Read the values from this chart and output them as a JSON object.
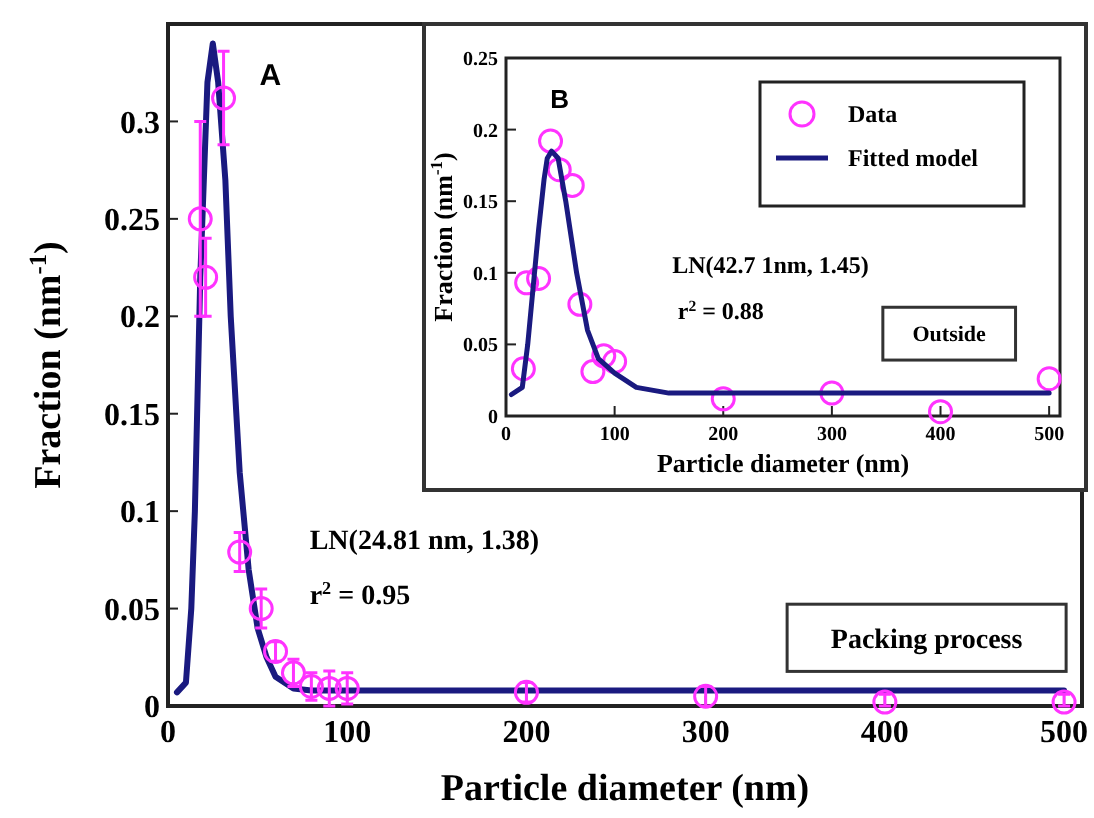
{
  "chart_data": [
    {
      "type": "scatter",
      "xlabel": "Particle diameter (nm)",
      "ylabel": "Fraction (nm$^{-1}$)",
      "xlim": [
        0,
        510
      ],
      "ylim": [
        0,
        0.35
      ],
      "xticks": [
        0,
        100,
        200,
        300,
        400,
        500
      ],
      "yticks": [
        0,
        0.05,
        0.1,
        0.15,
        0.2,
        0.25,
        0.3
      ],
      "legend": false,
      "annotations": [
        "A",
        "LN(24.81 nm, 1.38)",
        "r$^{2}$ = 0.95",
        "Packing process"
      ],
      "series": [
        {
          "type": "line",
          "color": "#1a1a80",
          "marker": "none",
          "line_style": "solid",
          "x": [
            5,
            10,
            13,
            15,
            18,
            22,
            25,
            28,
            32,
            35,
            40,
            45,
            50,
            55,
            60,
            70,
            80,
            100,
            200,
            300,
            400,
            500
          ],
          "values": [
            0.007,
            0.012,
            0.05,
            0.1,
            0.22,
            0.32,
            0.34,
            0.32,
            0.27,
            0.2,
            0.12,
            0.07,
            0.04,
            0.025,
            0.015,
            0.009,
            0.008,
            0.008,
            0.008,
            0.008,
            0.008,
            0.008
          ]
        },
        {
          "type": "scatter",
          "color": "#ff33ff",
          "marker": "circle",
          "x": [
            18,
            21,
            31,
            40,
            52,
            60,
            70,
            80,
            90,
            100,
            200,
            300,
            400,
            500
          ],
          "values": [
            0.25,
            0.22,
            0.312,
            0.079,
            0.05,
            0.028,
            0.017,
            0.01,
            0.009,
            0.009,
            0.007,
            0.005,
            0.002,
            0.002
          ],
          "errors": [
            0.05,
            0.02,
            0.024,
            0.01,
            0.01,
            0.005,
            0.007,
            0.007,
            0.009,
            0.008,
            [
              0.002,
              0.012
            ],
            [
              0,
              0.01
            ],
            [
              0,
              0.006
            ],
            [
              0,
              0.006
            ]
          ]
        }
      ]
    },
    {
      "type": "scatter",
      "xlabel": "Particle diameter (nm)",
      "ylabel": "Fraction (nm$^{-1}$)",
      "xlim": [
        0,
        510
      ],
      "ylim": [
        0,
        0.25
      ],
      "xticks": [
        0,
        100,
        200,
        300,
        400,
        500
      ],
      "yticks": [
        0,
        0.05,
        0.1,
        0.15,
        0.2,
        0.25
      ],
      "legend": "top right",
      "annotations": [
        "B",
        "LN(42.7 1nm, 1.45)",
        "r$^{2}$ = 0.88",
        "Outside"
      ],
      "series": [
        {
          "type": "scatter",
          "name": "Data",
          "color": "#ff33ff",
          "marker": "circle",
          "x": [
            16,
            19,
            30,
            41,
            49,
            61,
            68,
            80,
            90,
            100,
            200,
            300,
            400,
            500
          ],
          "values": [
            0.033,
            0.093,
            0.096,
            0.192,
            0.172,
            0.161,
            0.078,
            0.031,
            0.042,
            0.038,
            0.012,
            0.016,
            0.003,
            0.026
          ]
        },
        {
          "type": "line",
          "name": "Fitted model",
          "color": "#1a1a80",
          "marker": "none",
          "line_style": "solid",
          "x": [
            5,
            15,
            20,
            25,
            30,
            35,
            38,
            42,
            48,
            55,
            65,
            75,
            85,
            100,
            120,
            150,
            200,
            300,
            400,
            500
          ],
          "values": [
            0.015,
            0.02,
            0.05,
            0.09,
            0.13,
            0.165,
            0.18,
            0.185,
            0.18,
            0.15,
            0.1,
            0.06,
            0.04,
            0.03,
            0.02,
            0.016,
            0.016,
            0.016,
            0.016,
            0.016
          ]
        }
      ]
    }
  ]
}
